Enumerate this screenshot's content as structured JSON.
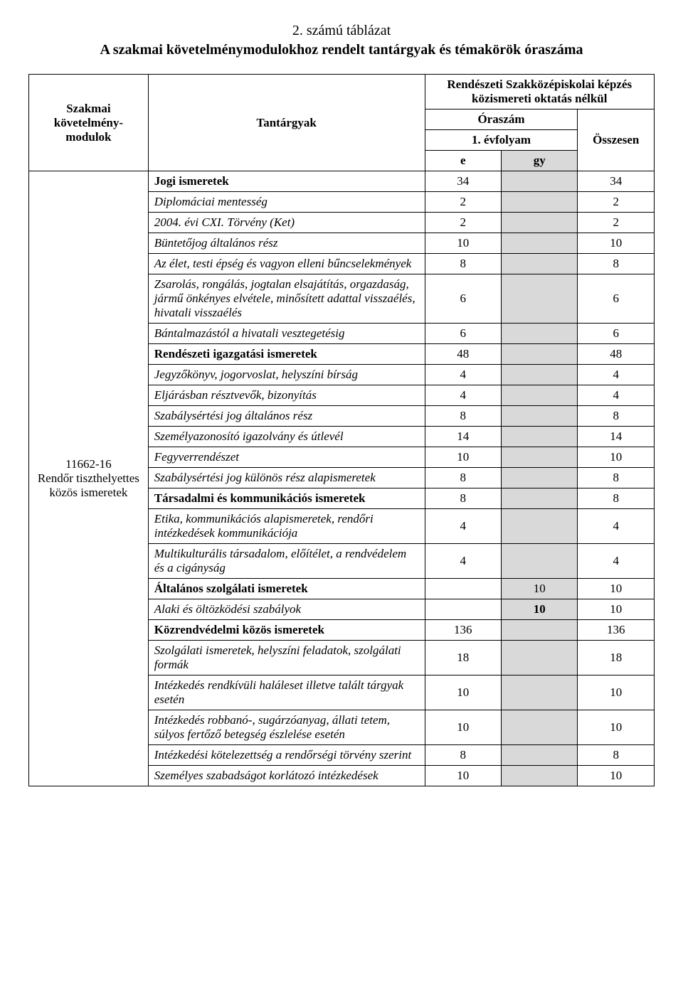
{
  "title": {
    "line1": "2. számú táblázat",
    "line2": "A szakmai követelménymodulokhoz rendelt tantárgyak és témakörök óraszáma"
  },
  "headers": {
    "col1": "Szakmai követelmény-modulok",
    "col2": "Tantárgyak",
    "group_top": "Rendészeti Szakközépiskolai képzés közismereti oktatás nélkül",
    "oraszam": "Óraszám",
    "evfolyam": "1. évfolyam",
    "osszesen": "Összesen",
    "e": "e",
    "gy": "gy"
  },
  "module": {
    "code": "11662-16",
    "name": "Rendőr tiszthelyettes közös ismeretek"
  },
  "rows": [
    {
      "label": "Jogi ismeretek",
      "style": "bold",
      "e": "34",
      "gy": "",
      "total": "34"
    },
    {
      "label": "Diplomáciai mentesség",
      "style": "italic",
      "e": "2",
      "gy": "",
      "total": "2"
    },
    {
      "label": "2004. évi CXI. Törvény (Ket)",
      "style": "italic",
      "e": "2",
      "gy": "",
      "total": "2"
    },
    {
      "label": "Büntetőjog általános rész",
      "style": "italic",
      "e": "10",
      "gy": "",
      "total": "10"
    },
    {
      "label": "Az élet, testi épség és vagyon elleni bűncselekmények",
      "style": "italic",
      "e": "8",
      "gy": "",
      "total": "8"
    },
    {
      "label": "Zsarolás, rongálás, jogtalan elsajátítás, orgazdaság, jármű önkényes elvétele, minősített adattal visszaélés, hivatali visszaélés",
      "style": "italic",
      "e": "6",
      "gy": "",
      "total": "6"
    },
    {
      "label": "Bántalmazástól a hivatali vesztegetésig",
      "style": "italic",
      "e": "6",
      "gy": "",
      "total": "6"
    },
    {
      "label": "Rendészeti igazgatási ismeretek",
      "style": "bold",
      "e": "48",
      "gy": "",
      "total": "48"
    },
    {
      "label": "Jegyzőkönyv, jogorvoslat, helyszíni bírság",
      "style": "italic",
      "e": "4",
      "gy": "",
      "total": "4"
    },
    {
      "label": "Eljárásban résztvevők, bizonyítás",
      "style": "italic",
      "e": "4",
      "gy": "",
      "total": "4"
    },
    {
      "label": "Szabálysértési jog általános rész",
      "style": "italic",
      "e": "8",
      "gy": "",
      "total": "8"
    },
    {
      "label": "Személyazonosító igazolvány és útlevél",
      "style": "italic",
      "e": "14",
      "gy": "",
      "total": "14"
    },
    {
      "label": "Fegyverrendészet",
      "style": "italic",
      "e": "10",
      "gy": "",
      "total": "10"
    },
    {
      "label": "Szabálysértési jog különös rész alapismeretek",
      "style": "italic",
      "e": "8",
      "gy": "",
      "total": "8"
    },
    {
      "label": "Társadalmi és kommunikációs ismeretek",
      "style": "bold",
      "e": "8",
      "gy": "",
      "total": "8"
    },
    {
      "label": "Etika, kommunikációs alapismeretek, rendőri intézkedések kommunikációja",
      "style": "italic",
      "e": "4",
      "gy": "",
      "total": "4"
    },
    {
      "label": "Multikulturális társadalom, előítélet, a rendvédelem és a cigányság",
      "style": "italic",
      "e": "4",
      "gy": "",
      "total": "4"
    },
    {
      "label": "Általános szolgálati ismeretek",
      "style": "bold",
      "e": "",
      "gy": "10",
      "total": "10"
    },
    {
      "label": "Alaki és öltözködési szabályok",
      "style": "italic",
      "e": "",
      "gy": "10",
      "gyStyle": "bold",
      "total": "10"
    },
    {
      "label": "Közrendvédelmi közös ismeretek",
      "style": "bold",
      "e": "136",
      "gy": "",
      "total": "136"
    },
    {
      "label": "Szolgálati ismeretek, helyszíni feladatok, szolgálati formák",
      "style": "italic",
      "e": "18",
      "gy": "",
      "total": "18"
    },
    {
      "label": "Intézkedés rendkívüli haláleset illetve talált tárgyak esetén",
      "style": "italic",
      "e": "10",
      "gy": "",
      "total": "10"
    },
    {
      "label": "Intézkedés robbanó-, sugárzóanyag, állati tetem, súlyos fertőző betegség észlelése esetén",
      "style": "italic",
      "e": "10",
      "gy": "",
      "total": "10"
    },
    {
      "label": "Intézkedési kötelezettség a rendőrségi törvény szerint",
      "style": "italic",
      "e": "8",
      "gy": "",
      "total": "8"
    },
    {
      "label": "Személyes szabadságot korlátozó intézkedések",
      "style": "italic",
      "e": "10",
      "gy": "",
      "total": "10"
    }
  ],
  "colors": {
    "grey": "#d9d9d9",
    "background": "#ffffff",
    "text": "#000000",
    "border": "#000000"
  },
  "font": {
    "family": "Times New Roman",
    "title_size_pt": 15,
    "body_size_pt": 13
  }
}
